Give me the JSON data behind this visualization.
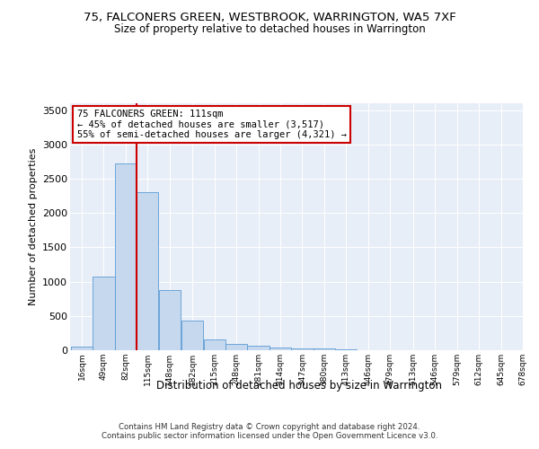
{
  "title": "75, FALCONERS GREEN, WESTBROOK, WARRINGTON, WA5 7XF",
  "subtitle": "Size of property relative to detached houses in Warrington",
  "xlabel": "Distribution of detached houses by size in Warrington",
  "ylabel": "Number of detached properties",
  "bar_color": "#c5d8ee",
  "bar_edge_color": "#5b9bd5",
  "background_color": "#e8eef7",
  "annotation_line_color": "#cc0000",
  "annotation_box_color": "#ffffff",
  "annotation_text": "75 FALCONERS GREEN: 111sqm\n← 45% of detached houses are smaller (3,517)\n55% of semi-detached houses are larger (4,321) →",
  "property_bin_index": 2,
  "bins_left": [
    16,
    49,
    82,
    115,
    148,
    182,
    215,
    248,
    281,
    314,
    347,
    380,
    413,
    446,
    479,
    513,
    546,
    579,
    612,
    645
  ],
  "bin_labels": [
    "16sqm",
    "49sqm",
    "82sqm",
    "115sqm",
    "148sqm",
    "182sqm",
    "215sqm",
    "248sqm",
    "281sqm",
    "314sqm",
    "347sqm",
    "380sqm",
    "413sqm",
    "446sqm",
    "479sqm",
    "513sqm",
    "546sqm",
    "579sqm",
    "612sqm",
    "645sqm",
    "678sqm"
  ],
  "bar_heights": [
    50,
    1080,
    2720,
    2300,
    880,
    430,
    160,
    90,
    60,
    45,
    30,
    20,
    10,
    5,
    3,
    2,
    1,
    1,
    0,
    0
  ],
  "ylim": [
    0,
    3600
  ],
  "yticks": [
    0,
    500,
    1000,
    1500,
    2000,
    2500,
    3000,
    3500
  ],
  "footer_text": "Contains HM Land Registry data © Crown copyright and database right 2024.\nContains public sector information licensed under the Open Government Licence v3.0.",
  "fig_width": 6.0,
  "fig_height": 5.0,
  "dpi": 100,
  "bin_width": 33
}
